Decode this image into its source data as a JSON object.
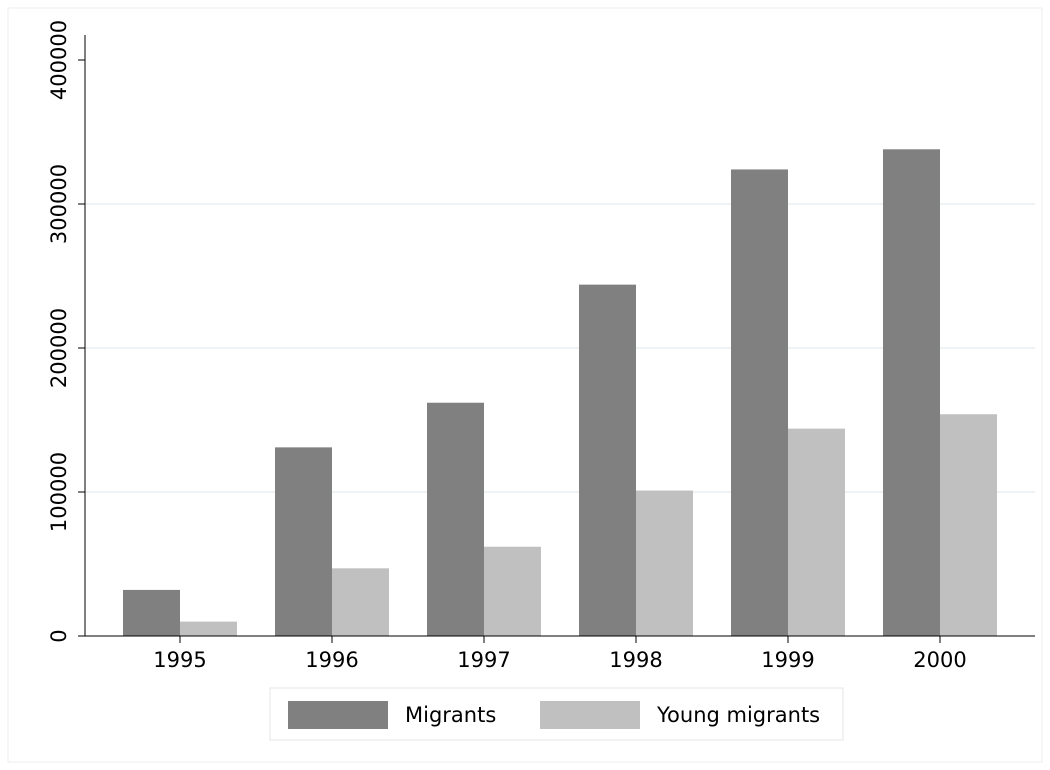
{
  "chart_data": {
    "type": "bar",
    "categories": [
      "1995",
      "1996",
      "1997",
      "1998",
      "1999",
      "2000"
    ],
    "series": [
      {
        "name": "Migrants",
        "color": "#808080",
        "values": [
          32000,
          131000,
          162000,
          244000,
          324000,
          338000
        ]
      },
      {
        "name": "Young migrants",
        "color": "#c0c0c0",
        "values": [
          10000,
          47000,
          62000,
          101000,
          144000,
          154000
        ]
      }
    ],
    "ylim": [
      0,
      400000
    ],
    "yticks": [
      0,
      100000,
      200000,
      300000,
      400000
    ],
    "grid": true
  }
}
